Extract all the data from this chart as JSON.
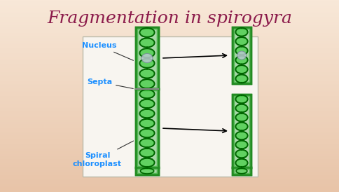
{
  "title": "Fragmentation in spirogyra",
  "title_color": "#8B1A4A",
  "title_fontsize": 18,
  "title_font": "serif",
  "bg_color_top": "#F5DFC8",
  "bg_color": "#F0D0B8",
  "panel_bg": "#FAFAF5",
  "label_nucleus": "Nucleus",
  "label_septa": "Septa",
  "label_chloroplast": "Spiral\nchloroplast",
  "label_color": "#1E90FF",
  "label_fontsize": 8,
  "cell_outer_color": "#228B22",
  "cell_inner_color": "#90EE90",
  "cell_fill_color": "#98E898",
  "spiral_dark": "#006400",
  "spiral_light": "#32CD32",
  "nucleus_color": "#A8B8C8",
  "septa_color": "#888888",
  "arrow_color": "#111111"
}
